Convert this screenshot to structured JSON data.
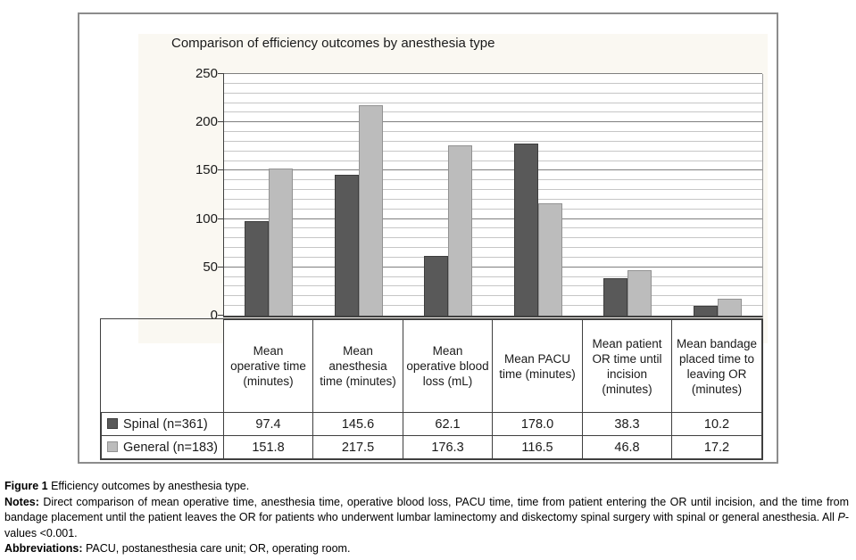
{
  "chart_data": {
    "type": "bar",
    "title": "Comparison of efficiency outcomes by anesthesia type",
    "categories": [
      "Mean operative time (minutes)",
      "Mean anesthesia time (minutes)",
      "Mean operative blood loss (mL)",
      "Mean PACU time (minutes)",
      "Mean patient OR time until incision (minutes)",
      "Mean bandage placed time to leaving OR (minutes)"
    ],
    "series": [
      {
        "name": "Spinal (n=361)",
        "color": "#595959",
        "border": "#3d3d3d",
        "values": [
          97.4,
          145.6,
          62.1,
          178.0,
          38.3,
          10.2
        ]
      },
      {
        "name": "General (n=183)",
        "color": "#bcbcbc",
        "border": "#929292",
        "values": [
          151.8,
          217.5,
          176.3,
          116.5,
          46.8,
          17.2
        ]
      }
    ],
    "xlabel": "",
    "ylabel": "",
    "ylim": [
      0,
      250
    ],
    "yticks": [
      0,
      50,
      100,
      150,
      200,
      250
    ],
    "minor_grid_step": 10,
    "major_grid_step": 50,
    "grid": true,
    "legend_position": "table-left"
  },
  "table": {
    "columns": [
      "Mean operative time (minutes)",
      "Mean anesthesia time (minutes)",
      "Mean operative blood loss (mL)",
      "Mean PACU time (minutes)",
      "Mean patient OR time until incision (minutes)",
      "Mean bandage placed time to leaving OR (minutes)"
    ],
    "rows": [
      {
        "label": "Spinal (n=361)",
        "values": [
          "97.4",
          "145.6",
          "62.1",
          "178.0",
          "38.3",
          "10.2"
        ]
      },
      {
        "label": "General (n=183)",
        "values": [
          "151.8",
          "217.5",
          "176.3",
          "116.5",
          "46.8",
          "17.2"
        ]
      }
    ]
  },
  "caption": {
    "figure_label": "Figure 1",
    "figure_text": " Efficiency outcomes by anesthesia type.",
    "notes_label": "Notes:",
    "notes_text": " Direct comparison of mean operative time, anesthesia time, operative blood loss, PACU time, time from patient entering the OR until incision, and the time from bandage placement until the patient leaves the OR for patients who underwent lumbar laminectomy and diskectomy spinal surgery with spinal or general anesthesia. All ",
    "notes_italic": "P",
    "notes_tail": "-values <0.001.",
    "abbreviations_label": "Abbreviations:",
    "abbreviations_text": " PACU, postanesthesia care unit; OR, operating room."
  },
  "colors": {
    "figure_border": "#8c8c8c",
    "chart_background": "#faf8f2",
    "plot_background": "#ffffff",
    "minor_gridline": "#c6c6c6",
    "major_gridline": "#7f7f7f",
    "axis": "#404040",
    "table_border": "#3f3f3f",
    "spinal_bar": "#595959",
    "general_bar": "#bcbcbc"
  }
}
